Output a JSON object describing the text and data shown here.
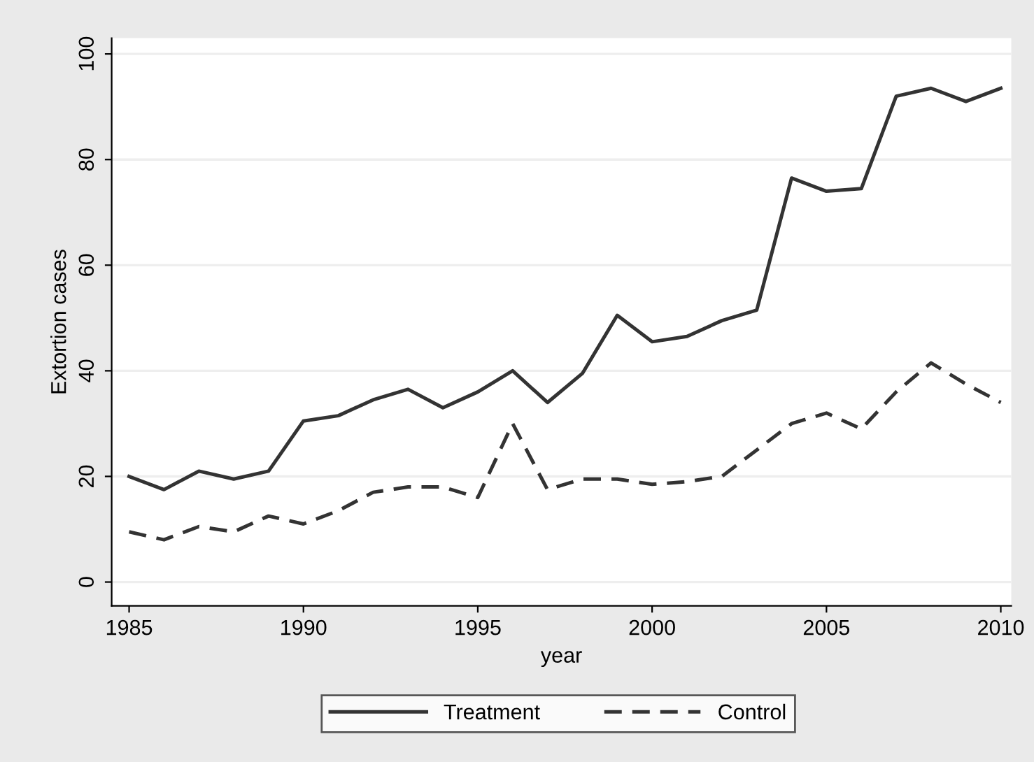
{
  "chart_data": {
    "type": "line",
    "xlabel": "year",
    "ylabel": "Extortion cases",
    "x": [
      1985,
      1986,
      1987,
      1988,
      1989,
      1990,
      1991,
      1992,
      1993,
      1994,
      1995,
      1996,
      1997,
      1998,
      1999,
      2000,
      2001,
      2002,
      2003,
      2004,
      2005,
      2006,
      2007,
      2008,
      2009,
      2010
    ],
    "series": [
      {
        "name": "Treatment",
        "color": "#333333",
        "line_style": "solid",
        "values": [
          20,
          17.5,
          21,
          19.5,
          21,
          30.5,
          31.5,
          34.5,
          36.5,
          33,
          36,
          40,
          34,
          39.5,
          50.5,
          45.5,
          46.5,
          49.5,
          51.5,
          76.5,
          74,
          74.5,
          92,
          93.5,
          91,
          93.5
        ]
      },
      {
        "name": "Control",
        "color": "#333333",
        "line_style": "dashed",
        "values": [
          9.5,
          8,
          10.5,
          9.5,
          12.5,
          11,
          13.5,
          17,
          18,
          18,
          16,
          30,
          17.5,
          19.5,
          19.5,
          18.5,
          19,
          20,
          25,
          30,
          32,
          29,
          36,
          41.5,
          37.5,
          34
        ]
      }
    ],
    "xlim": [
      1984.5,
      2010.3
    ],
    "xticks": [
      1985,
      1990,
      1995,
      2000,
      2005,
      2010
    ],
    "ylim": [
      -4.5,
      103
    ],
    "yticks": [
      0,
      20,
      40,
      60,
      80,
      100
    ],
    "grid": "y",
    "legend": "bottom",
    "marker": "none"
  }
}
